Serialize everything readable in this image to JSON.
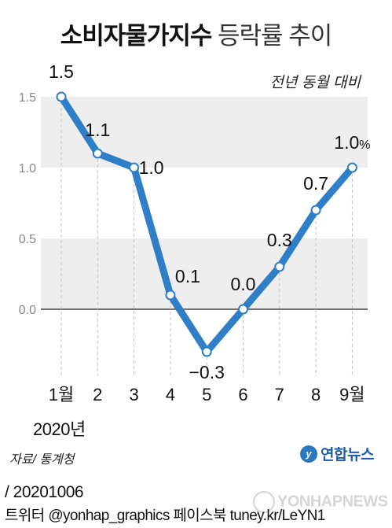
{
  "title": {
    "bold": "소비자물가지수",
    "light": "등락률 추이"
  },
  "note": "전년 동월 대비",
  "chart_data": {
    "type": "line",
    "title": "소비자물가지수 등락률 추이",
    "subtitle": "전년 동월 대비",
    "categories": [
      "1월",
      "2",
      "3",
      "4",
      "5",
      "6",
      "7",
      "8",
      "9월"
    ],
    "year_label": "2020년",
    "values": [
      1.5,
      1.1,
      1.0,
      0.1,
      -0.3,
      0.0,
      0.3,
      0.7,
      1.0
    ],
    "data_labels": [
      "1.5",
      "1.1",
      "1.0",
      "0.1",
      "−0.3",
      "0.0",
      "0.3",
      "0.7",
      "1.0"
    ],
    "last_label_unit": "%",
    "yticks": [
      "1.5",
      "1.0",
      "0.5",
      "0.0"
    ],
    "ylim": [
      -0.5,
      1.5
    ],
    "grid": true,
    "colors": {
      "line": "#2f7fc8",
      "marker_fill": "#ffffff",
      "band": "#eeeeee",
      "baseline": "#222222",
      "axis_text": "#888888"
    }
  },
  "footer": {
    "source": "자료/ 통계청",
    "logo": "연합뉴스",
    "date": "/ 20201006",
    "credits": "트위터 @yonhap_graphics  페이스북 tuney.kr/LeYN1",
    "watermark": "YONHAPNEWS"
  }
}
